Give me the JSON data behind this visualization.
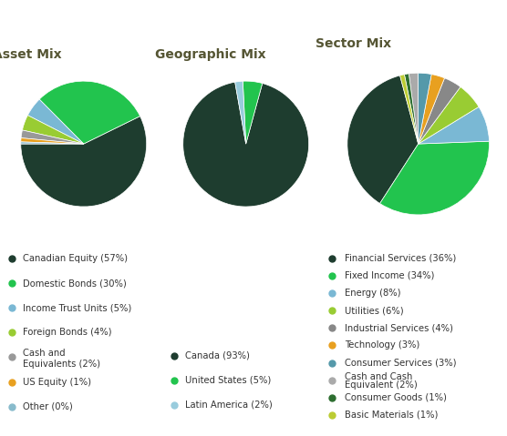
{
  "asset_mix": {
    "title": "Asset Mix",
    "values": [
      57,
      30,
      5,
      4,
      2,
      1,
      0.5
    ],
    "colors": [
      "#1e3d2f",
      "#22c44e",
      "#7ab8d4",
      "#99cc33",
      "#999999",
      "#e8a020",
      "#88bbcc"
    ],
    "startangle": 180,
    "legend_labels": [
      "Canadian Equity (57%)",
      "Domestic Bonds (30%)",
      "Income Trust Units (5%)",
      "Foreign Bonds (4%)",
      "Cash and\nEquivalents (2%)",
      "US Equity (1%)",
      "Other (0%)"
    ]
  },
  "geo_mix": {
    "title": "Geographic Mix",
    "values": [
      93,
      5,
      2
    ],
    "colors": [
      "#1e3d2f",
      "#22c44e",
      "#99ccdd"
    ],
    "startangle": 100,
    "legend_labels": [
      "Canada (93%)",
      "United States (5%)",
      "Latin America (2%)"
    ]
  },
  "sector_mix": {
    "title": "Sector Mix",
    "values": [
      36,
      34,
      8,
      6,
      4,
      3,
      3,
      2,
      1,
      1
    ],
    "colors": [
      "#1e3d2f",
      "#22c44e",
      "#7ab8d4",
      "#99cc33",
      "#888888",
      "#e8a020",
      "#5599aa",
      "#aaaaaa",
      "#2d6e30",
      "#bbcc33"
    ],
    "startangle": 105,
    "legend_labels": [
      "Financial Services (36%)",
      "Fixed Income (34%)",
      "Energy (8%)",
      "Utilities (6%)",
      "Industrial Services (4%)",
      "Technology (3%)",
      "Consumer Services (3%)",
      "Cash and Cash\nEquivalent (2%)",
      "Consumer Goods (1%)",
      "Basic Materials (1%)"
    ]
  },
  "bg_color": "#ffffff",
  "title_fontsize": 10,
  "title_color": "#555533",
  "legend_fontsize": 7.2
}
